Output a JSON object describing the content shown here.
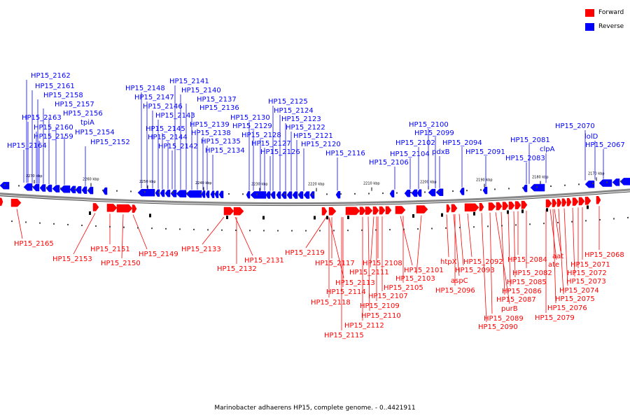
{
  "caption": "Marinobacter adhaerens HP15, complete genome. - 0..4421911",
  "colors": {
    "forward": "#ff0000",
    "reverse": "#0000ff",
    "backbone": "#888888"
  },
  "legend": [
    {
      "label": "Forward",
      "color": "#ff0000"
    },
    {
      "label": "Reverse",
      "color": "#0000ff"
    }
  ],
  "scale_ticks": [
    "2270 kbp",
    "2260 kbp",
    "2250 kbp",
    "2240 kbp",
    "2230 kbp",
    "2220 kbp",
    "2210 kbp",
    "2200 kbp",
    "2190 kbp",
    "2180 kbp",
    "2170 kbp"
  ],
  "reverse_labels": [
    "HP15_2162",
    "HP15_2161",
    "HP15_2158",
    "HP15_2157",
    "HP15_2156",
    "HP15_2163",
    "tpiA",
    "HP15_2160",
    "HP15_2154",
    "HP15_2159",
    "HP15_2152",
    "HP15_2164",
    "HP15_2141",
    "HP15_2148",
    "HP15_2140",
    "HP15_2147",
    "HP15_2137",
    "HP15_2146",
    "HP15_2136",
    "HP15_2143",
    "HP15_2139",
    "HP15_2145",
    "HP15_2138",
    "HP15_2144",
    "HP15_2135",
    "HP15_2142",
    "HP15_2134",
    "HP15_2125",
    "HP15_2124",
    "HP15_2130",
    "HP15_2123",
    "HP15_2129",
    "HP15_2122",
    "HP15_2128",
    "HP15_2121",
    "HP15_2127",
    "HP15_2120",
    "HP15_2126",
    "HP15_2116",
    "HP15_2100",
    "HP15_2099",
    "HP15_2102",
    "pdxB",
    "HP15_2094",
    "HP15_2104",
    "HP15_2091",
    "HP15_2106",
    "HP15_2070",
    "HP15_2081",
    "lolD",
    "HP15_2067",
    "clpA",
    "HP15_2083"
  ],
  "forward_labels": [
    "HP15_2165",
    "HP15_2151",
    "HP15_2153",
    "HP15_2149",
    "HP15_2150",
    "HP15_2133",
    "HP15_2131",
    "HP15_2132",
    "HP15_2119",
    "HP15_2117",
    "HP15_2108",
    "HP15_2111",
    "HP15_2101",
    "HP15_2113",
    "HP15_2103",
    "HP15_2114",
    "HP15_2105",
    "HP15_2118",
    "HP15_2107",
    "HP15_2109",
    "HP15_2110",
    "HP15_2112",
    "HP15_2115",
    "htpX",
    "HP15_2092",
    "HP15_2093",
    "aspC",
    "HP15_2096",
    "HP15_2084",
    "HP15_2082",
    "HP15_2085",
    "HP15_2086",
    "HP15_2087",
    "purB",
    "HP15_2089",
    "HP15_2090",
    "aat",
    "ate",
    "HP15_2068",
    "HP15_2071",
    "HP15_2072",
    "HP15_2073",
    "HP15_2074",
    "HP15_2075",
    "HP15_2076",
    "HP15_2079"
  ]
}
